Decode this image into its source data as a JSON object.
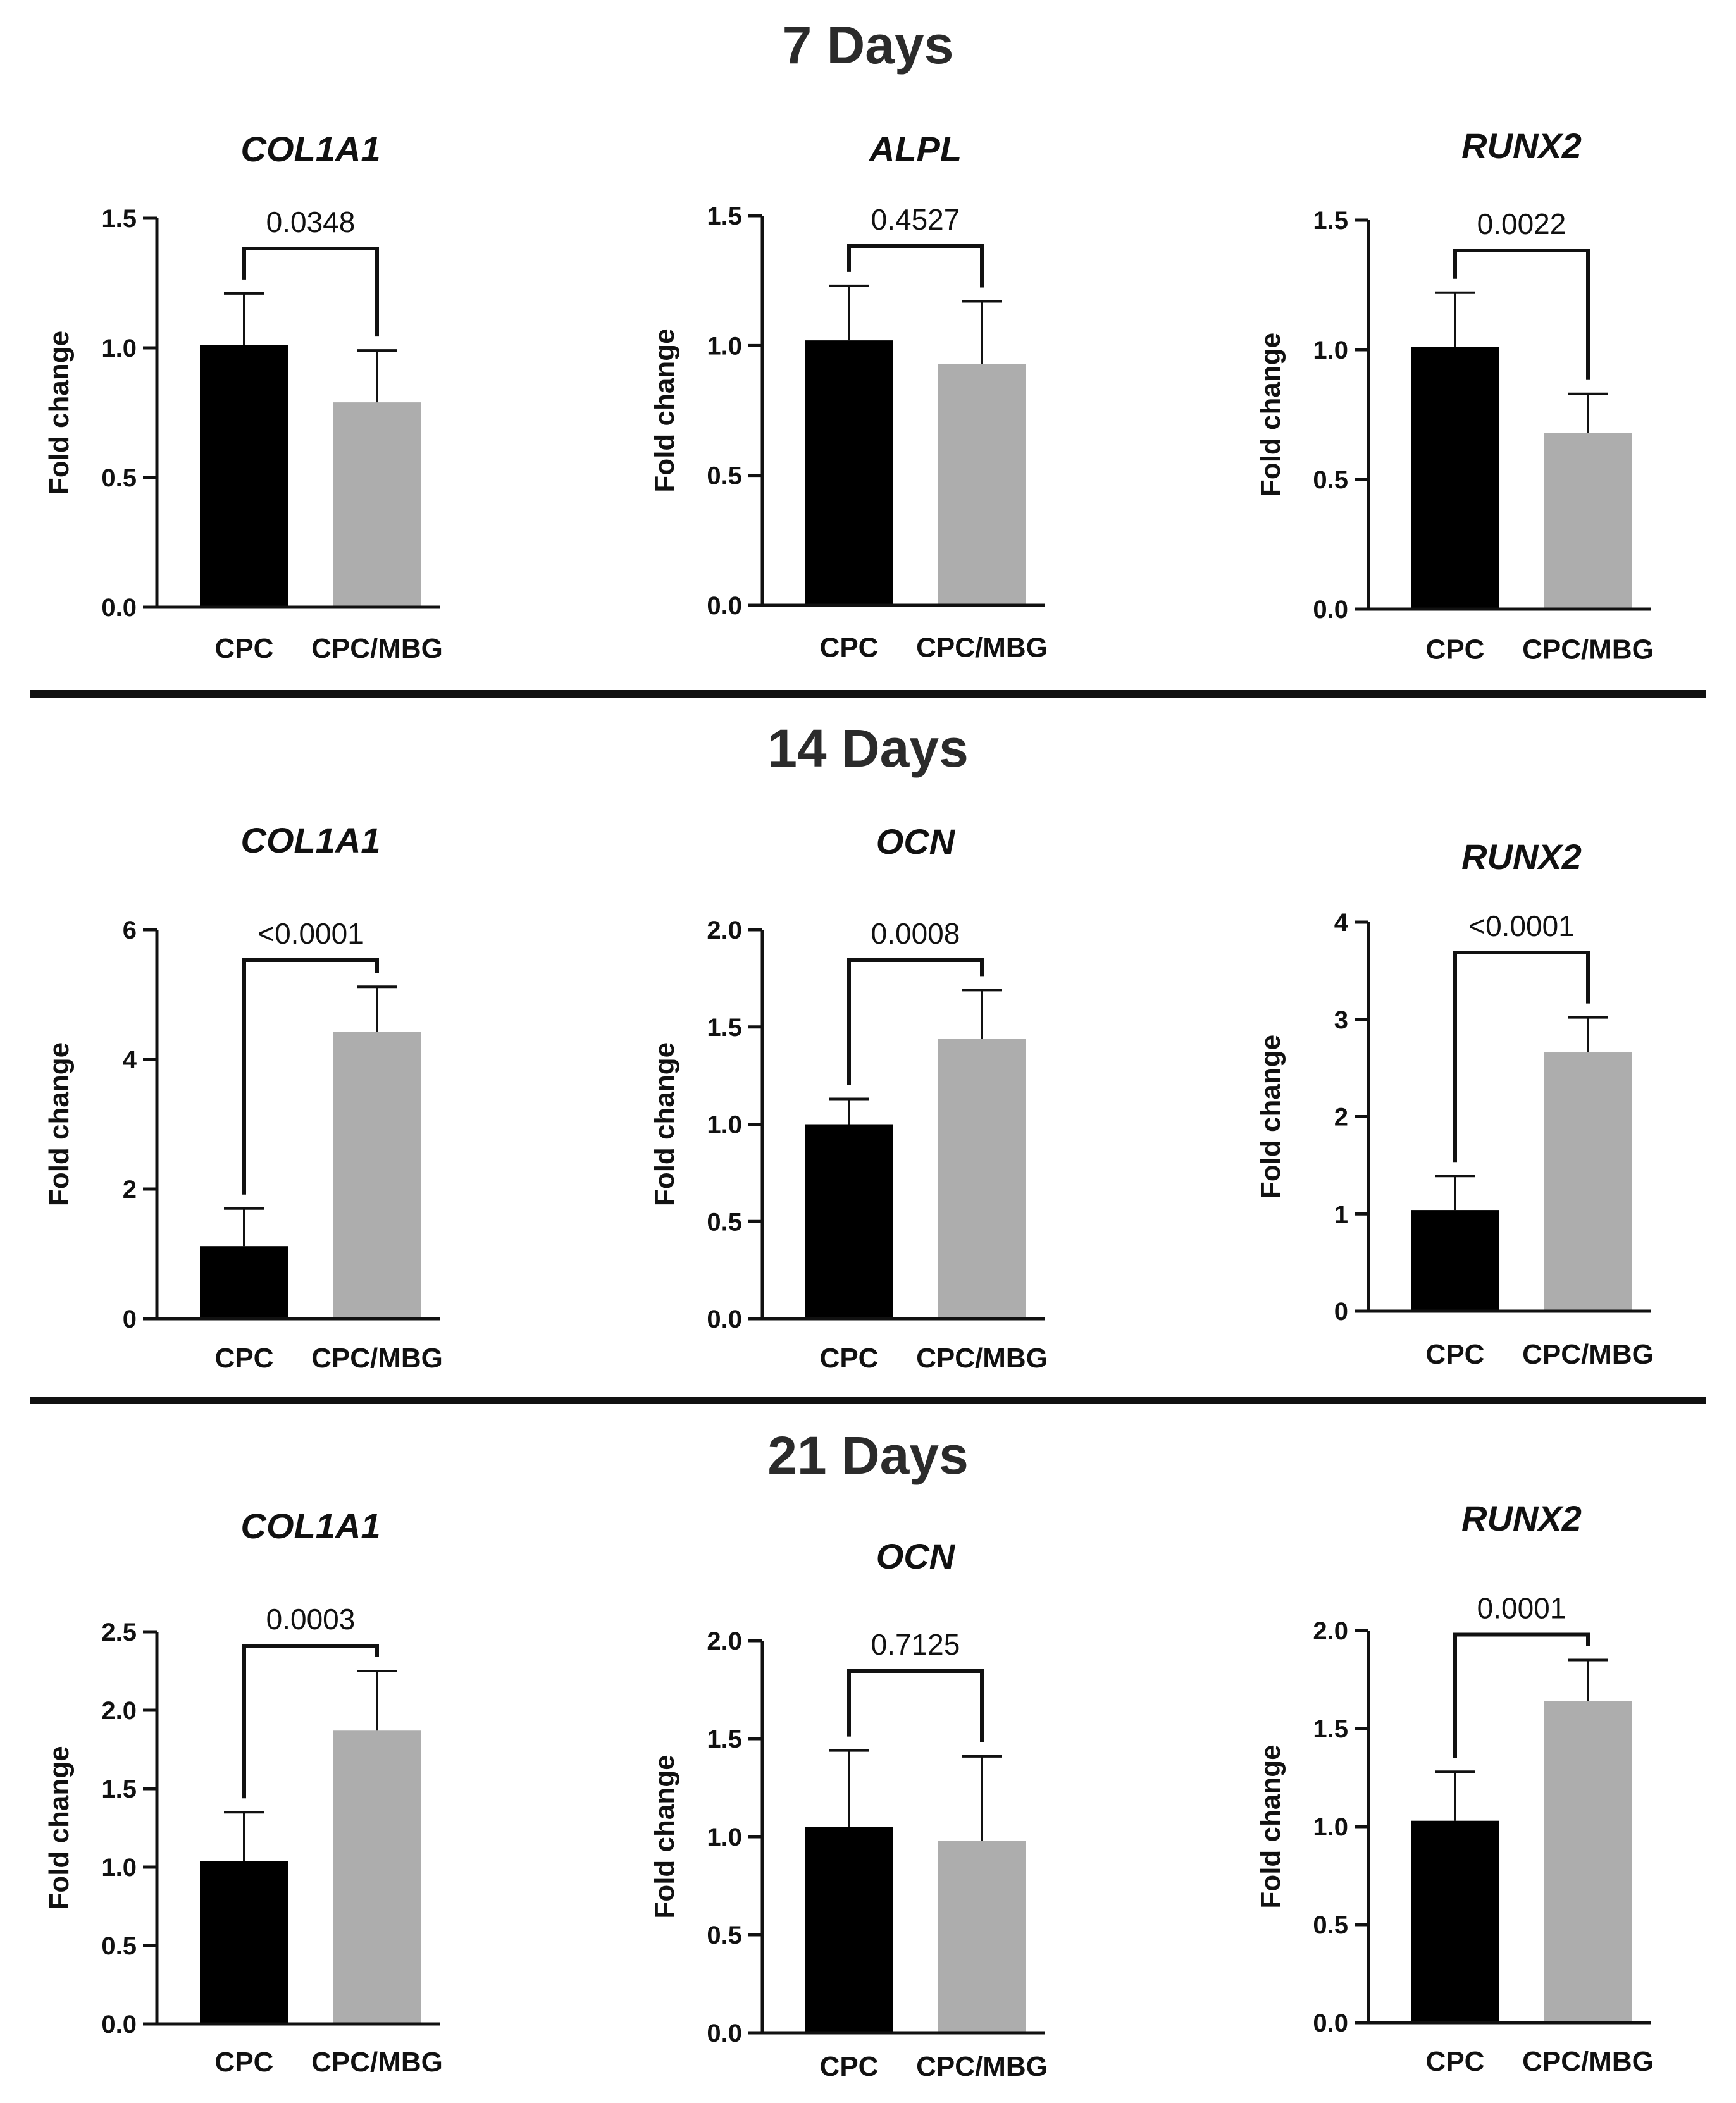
{
  "figure": {
    "sections": [
      "7 Days",
      "14 Days",
      "21 Days"
    ]
  },
  "colors": {
    "CPC": "#000000",
    "CPC/MBG": "#adadad",
    "text": "#111111",
    "section_title": "#2b2b2b"
  },
  "chart_data": [
    {
      "type": "bar",
      "section": "7 Days",
      "title": "COL1A1",
      "ylabel": "Fold change",
      "categories": [
        "CPC",
        "CPC/MBG"
      ],
      "values": [
        1.01,
        0.79
      ],
      "errors": [
        0.2,
        0.2
      ],
      "ylim": [
        0,
        1.5
      ],
      "yticks": [
        0.0,
        0.5,
        1.0,
        1.5
      ],
      "tick_labels": [
        "0.0",
        "0.5",
        "1.0",
        "1.5"
      ],
      "p_value": "0.0348"
    },
    {
      "type": "bar",
      "section": "7 Days",
      "title": "ALPL",
      "ylabel": "Fold change",
      "categories": [
        "CPC",
        "CPC/MBG"
      ],
      "values": [
        1.02,
        0.93
      ],
      "errors": [
        0.21,
        0.24
      ],
      "ylim": [
        0,
        1.5
      ],
      "yticks": [
        0.0,
        0.5,
        1.0,
        1.5
      ],
      "tick_labels": [
        "0.0",
        "0.5",
        "1.0",
        "1.5"
      ],
      "p_value": "0.4527"
    },
    {
      "type": "bar",
      "section": "7 Days",
      "title": "RUNX2",
      "ylabel": "Fold change",
      "categories": [
        "CPC",
        "CPC/MBG"
      ],
      "values": [
        1.01,
        0.68
      ],
      "errors": [
        0.21,
        0.15
      ],
      "ylim": [
        0,
        1.5
      ],
      "yticks": [
        0.0,
        0.5,
        1.0,
        1.5
      ],
      "tick_labels": [
        "0.0",
        "0.5",
        "1.0",
        "1.5"
      ],
      "p_value": "0.0022"
    },
    {
      "type": "bar",
      "section": "14 Days",
      "title": "COL1A1",
      "ylabel": "Fold change",
      "categories": [
        "CPC",
        "CPC/MBG"
      ],
      "values": [
        1.12,
        4.42
      ],
      "errors": [
        0.58,
        0.7
      ],
      "ylim": [
        0,
        6
      ],
      "yticks": [
        0,
        2,
        4,
        6
      ],
      "tick_labels": [
        "0",
        "2",
        "4",
        "6"
      ],
      "p_value": "<0.0001"
    },
    {
      "type": "bar",
      "section": "14 Days",
      "title": "OCN",
      "ylabel": "Fold change",
      "categories": [
        "CPC",
        "CPC/MBG"
      ],
      "values": [
        1.0,
        1.44
      ],
      "errors": [
        0.13,
        0.25
      ],
      "ylim": [
        0,
        2.0
      ],
      "yticks": [
        0.0,
        0.5,
        1.0,
        1.5,
        2.0
      ],
      "tick_labels": [
        "0.0",
        "0.5",
        "1.0",
        "1.5",
        "2.0"
      ],
      "p_value": "0.0008"
    },
    {
      "type": "bar",
      "section": "14 Days",
      "title": "RUNX2",
      "ylabel": "Fold change",
      "categories": [
        "CPC",
        "CPC/MBG"
      ],
      "values": [
        1.04,
        2.66
      ],
      "errors": [
        0.35,
        0.36
      ],
      "ylim": [
        0,
        4
      ],
      "yticks": [
        0,
        1,
        2,
        3,
        4
      ],
      "tick_labels": [
        "0",
        "1",
        "2",
        "3",
        "4"
      ],
      "p_value": "<0.0001"
    },
    {
      "type": "bar",
      "section": "21 Days",
      "title": "COL1A1",
      "ylabel": "Fold change",
      "categories": [
        "CPC",
        "CPC/MBG"
      ],
      "values": [
        1.04,
        1.87
      ],
      "errors": [
        0.31,
        0.38
      ],
      "ylim": [
        0,
        2.5
      ],
      "yticks": [
        0.0,
        0.5,
        1.0,
        1.5,
        2.0,
        2.5
      ],
      "tick_labels": [
        "0.0",
        "0.5",
        "1.0",
        "1.5",
        "2.0",
        "2.5"
      ],
      "p_value": "0.0003"
    },
    {
      "type": "bar",
      "section": "21 Days",
      "title": "OCN",
      "ylabel": "Fold change",
      "categories": [
        "CPC",
        "CPC/MBG"
      ],
      "values": [
        1.05,
        0.98
      ],
      "errors": [
        0.39,
        0.43
      ],
      "ylim": [
        0,
        2.0
      ],
      "yticks": [
        0.0,
        0.5,
        1.0,
        1.5,
        2.0
      ],
      "tick_labels": [
        "0.0",
        "0.5",
        "1.0",
        "1.5",
        "2.0"
      ],
      "p_value": "0.7125"
    },
    {
      "type": "bar",
      "section": "21 Days",
      "title": "RUNX2",
      "ylabel": "Fold change",
      "categories": [
        "CPC",
        "CPC/MBG"
      ],
      "values": [
        1.03,
        1.64
      ],
      "errors": [
        0.25,
        0.21
      ],
      "ylim": [
        0,
        2.0
      ],
      "yticks": [
        0.0,
        0.5,
        1.0,
        1.5,
        2.0
      ],
      "tick_labels": [
        "0.0",
        "0.5",
        "1.0",
        "1.5",
        "2.0"
      ],
      "p_value": "0.0001"
    }
  ]
}
